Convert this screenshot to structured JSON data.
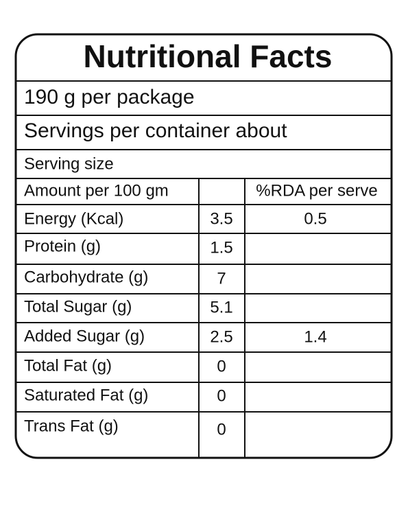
{
  "header": {
    "title": "Nutritional Facts"
  },
  "lines": [
    "190 g per package",
    "Servings per container about",
    "Serving size"
  ],
  "table": {
    "header": {
      "label": "Amount per 100 gm",
      "rda": "%RDA per serve"
    },
    "rows": [
      [
        "Energy (Kcal)",
        3.5,
        0.5
      ],
      [
        "Protein (g)",
        1.5
      ],
      [
        "Carbohydrate (g)",
        7
      ],
      [
        "Total Sugar (g)",
        5.1
      ],
      [
        "Added Sugar (g)",
        2.5,
        1.4
      ],
      [
        "Total Fat (g)",
        0
      ],
      [
        "Saturated Fat (g)",
        0
      ],
      [
        "Trans Fat (g)",
        0
      ]
    ]
  }
}
